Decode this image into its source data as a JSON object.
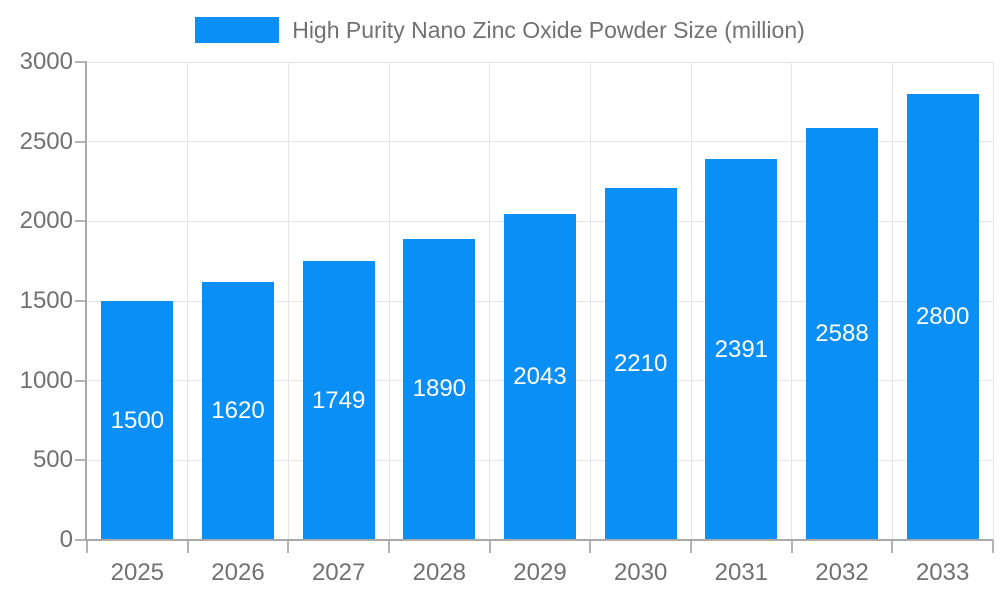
{
  "chart_data": {
    "type": "bar",
    "title": "High Purity Nano Zinc Oxide Powder Size (million)",
    "categories": [
      "2025",
      "2026",
      "2027",
      "2028",
      "2029",
      "2030",
      "2031",
      "2032",
      "2033"
    ],
    "values": [
      1500,
      1620,
      1749,
      1890,
      2043,
      2210,
      2391,
      2588,
      2800
    ],
    "xlabel": "",
    "ylabel": "",
    "ylim": [
      0,
      3000
    ],
    "yticks": [
      0,
      500,
      1000,
      1500,
      2000,
      2500,
      3000
    ],
    "grid": "on",
    "legend_position": "top-center",
    "colors": {
      "bar": "#0A8FF7",
      "value_label": "#ffffff",
      "text": "#717171",
      "grid": "#e5e5e5",
      "axis": "#a9a9a9",
      "tick": "#b3b3b3",
      "background": "#ffffff"
    }
  }
}
